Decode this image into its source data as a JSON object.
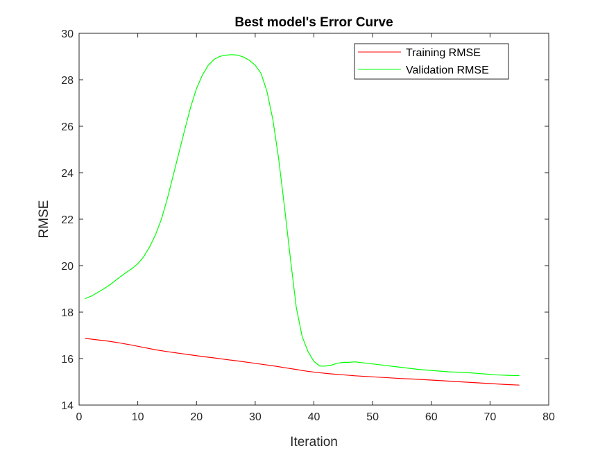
{
  "chart_data": {
    "type": "line",
    "title": "Best model's Error Curve",
    "xlabel": "Iteration",
    "ylabel": "RMSE",
    "xlim": [
      0,
      80
    ],
    "ylim": [
      14,
      30
    ],
    "xticks": [
      0,
      10,
      20,
      30,
      40,
      50,
      60,
      70,
      80
    ],
    "yticks": [
      14,
      16,
      18,
      20,
      22,
      24,
      26,
      28,
      30
    ],
    "grid": false,
    "legend_position": "top-right",
    "series": [
      {
        "name": "Training RMSE",
        "color": "#ff0000",
        "x": [
          1,
          3,
          5,
          7,
          9,
          11,
          13,
          15,
          17,
          19,
          21,
          23,
          25,
          27,
          29,
          31,
          33,
          35,
          37,
          39,
          41,
          43,
          45,
          47,
          49,
          51,
          53,
          55,
          57,
          59,
          61,
          63,
          65,
          67,
          69,
          71,
          73,
          75
        ],
        "values": [
          16.87,
          16.81,
          16.75,
          16.67,
          16.58,
          16.48,
          16.38,
          16.3,
          16.23,
          16.16,
          16.09,
          16.03,
          15.96,
          15.9,
          15.83,
          15.76,
          15.69,
          15.61,
          15.53,
          15.45,
          15.39,
          15.34,
          15.3,
          15.26,
          15.23,
          15.2,
          15.17,
          15.14,
          15.12,
          15.09,
          15.06,
          15.03,
          15.0,
          14.97,
          14.94,
          14.91,
          14.88,
          14.86
        ]
      },
      {
        "name": "Validation RMSE",
        "color": "#00ff00",
        "x": [
          1,
          2,
          3,
          4,
          5,
          6,
          7,
          8,
          9,
          10,
          11,
          12,
          13,
          14,
          15,
          16,
          17,
          18,
          19,
          20,
          21,
          22,
          23,
          24,
          25,
          26,
          27,
          28,
          29,
          30,
          31,
          32,
          33,
          34,
          35,
          36,
          37,
          38,
          39,
          40,
          41,
          42,
          43,
          44,
          45,
          46,
          47,
          48,
          49,
          50,
          51,
          52,
          53,
          54,
          55,
          56,
          57,
          58,
          59,
          60,
          61,
          62,
          63,
          64,
          65,
          66,
          67,
          68,
          69,
          70,
          71,
          72,
          73,
          74,
          75
        ],
        "values": [
          18.58,
          18.68,
          18.82,
          18.97,
          19.13,
          19.32,
          19.52,
          19.7,
          19.87,
          20.08,
          20.38,
          20.8,
          21.32,
          21.98,
          22.85,
          23.85,
          24.85,
          25.85,
          26.82,
          27.62,
          28.2,
          28.62,
          28.88,
          29.01,
          29.06,
          29.08,
          29.06,
          28.98,
          28.84,
          28.63,
          28.27,
          27.5,
          26.3,
          24.6,
          22.5,
          20.3,
          18.2,
          16.95,
          16.3,
          15.88,
          15.68,
          15.68,
          15.72,
          15.8,
          15.84,
          15.84,
          15.86,
          15.83,
          15.8,
          15.77,
          15.74,
          15.71,
          15.68,
          15.65,
          15.62,
          15.59,
          15.56,
          15.53,
          15.51,
          15.49,
          15.47,
          15.45,
          15.43,
          15.42,
          15.41,
          15.4,
          15.38,
          15.36,
          15.34,
          15.32,
          15.3,
          15.29,
          15.28,
          15.27,
          15.27
        ]
      }
    ]
  }
}
